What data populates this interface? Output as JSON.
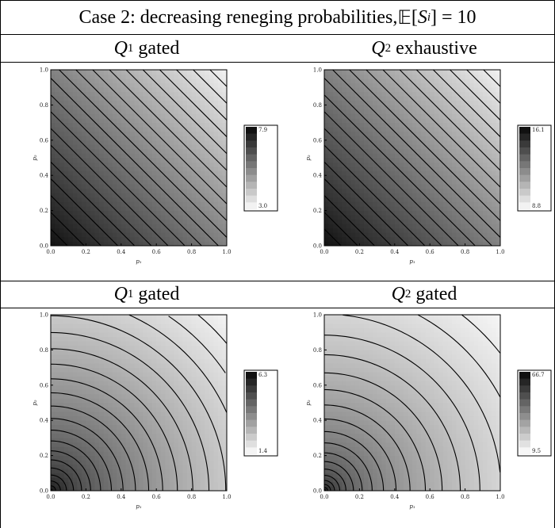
{
  "figure": {
    "title": "Case 2: decreasing reneging probabilities, 𝔼[Sᵢ] = 10",
    "title_parts": {
      "prefix": "Case 2: decreasing reneging probabilities, ",
      "E": "𝔼",
      "S": "S",
      "i": "i",
      "suffix": "] = 10",
      "bracket": "["
    }
  },
  "chart_data": [
    {
      "type": "heatmap",
      "caption": {
        "q": "Q",
        "sub": "1",
        "text": "gated"
      },
      "xlabel": "p₁",
      "ylabel": "p₂",
      "xlim": [
        0,
        1
      ],
      "ylim": [
        0,
        1
      ],
      "x_ticks": [
        "0.0",
        "0.2",
        "0.4",
        "0.6",
        "0.8",
        "1.0"
      ],
      "y_ticks": [
        "0.0",
        "0.2",
        "0.4",
        "0.6",
        "0.8",
        "1.0"
      ],
      "legend": {
        "max": "7.9",
        "min": "3.0"
      },
      "min": 3.0,
      "max": 7.9,
      "contour_shape": "straight",
      "contour_count": 20,
      "colors": {
        "low": "#f2f2f2",
        "high": "#111111"
      }
    },
    {
      "type": "heatmap",
      "caption": {
        "q": "Q",
        "sub": "2",
        "text": "exhaustive"
      },
      "xlabel": "p₁",
      "ylabel": "p₂",
      "xlim": [
        0,
        1
      ],
      "ylim": [
        0,
        1
      ],
      "x_ticks": [
        "0.0",
        "0.2",
        "0.4",
        "0.6",
        "0.8",
        "1.0"
      ],
      "y_ticks": [
        "0.0",
        "0.2",
        "0.4",
        "0.6",
        "0.8",
        "1.0"
      ],
      "legend": {
        "max": "16.1",
        "min": "8.8"
      },
      "min": 8.8,
      "max": 16.1,
      "contour_shape": "straight",
      "contour_count": 20,
      "colors": {
        "low": "#f2f2f2",
        "high": "#111111"
      }
    },
    {
      "type": "heatmap",
      "caption": {
        "q": "Q",
        "sub": "1",
        "text": "gated"
      },
      "xlabel": "p₁",
      "ylabel": "p₂",
      "xlim": [
        0,
        1
      ],
      "ylim": [
        0,
        1
      ],
      "x_ticks": [
        "0.0",
        "0.2",
        "0.4",
        "0.6",
        "0.8",
        "1.0"
      ],
      "y_ticks": [
        "0.0",
        "0.2",
        "0.4",
        "0.6",
        "0.8",
        "1.0"
      ],
      "legend": {
        "max": "6.3",
        "min": "1.4"
      },
      "min": 1.4,
      "max": 6.3,
      "contour_shape": "curved",
      "contour_count": 20,
      "colors": {
        "low": "#f4f4f4",
        "high": "#111111"
      }
    },
    {
      "type": "heatmap",
      "caption": {
        "q": "Q",
        "sub": "2",
        "text": "gated"
      },
      "xlabel": "p₁",
      "ylabel": "p₂",
      "xlim": [
        0,
        1
      ],
      "ylim": [
        0,
        1
      ],
      "x_ticks": [
        "0.0",
        "0.2",
        "0.4",
        "0.6",
        "0.8",
        "1.0"
      ],
      "y_ticks": [
        "0.0",
        "0.2",
        "0.4",
        "0.6",
        "0.8",
        "1.0"
      ],
      "legend": {
        "max": "66.7",
        "min": "9.5"
      },
      "min": 9.5,
      "max": 66.7,
      "contour_shape": "arc",
      "contour_count": 20,
      "colors": {
        "low": "#f6f6f6",
        "high": "#111111"
      }
    }
  ]
}
